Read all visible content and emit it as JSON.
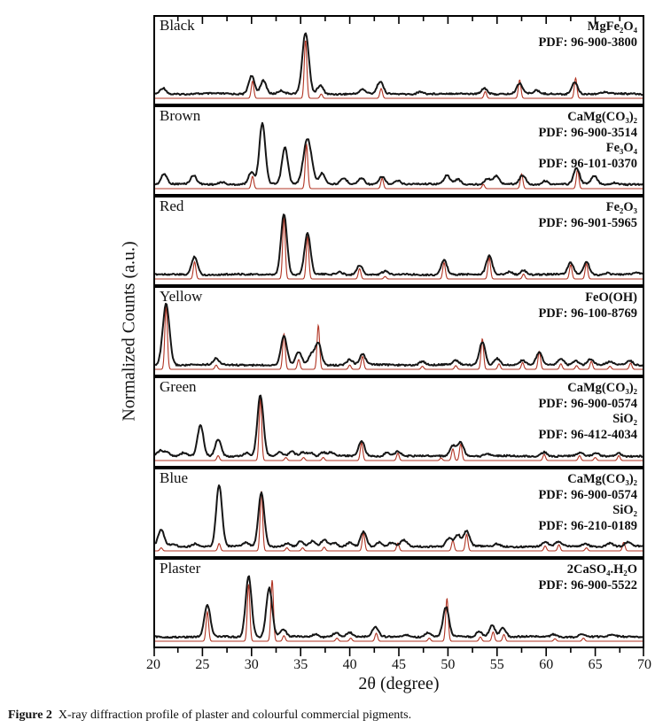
{
  "figure": {
    "caption_label": "Figure 2",
    "caption_text": "X-ray diffraction profile of plaster and colourful commercial pigments."
  },
  "chart_data": {
    "type": "line",
    "title": "X-ray diffraction profiles of plaster and colourful commercial pigments",
    "xlabel": "2θ (degree)",
    "ylabel": "Normalized Counts (a.u.)",
    "xlim": [
      20,
      70
    ],
    "x_major_ticks": [
      20,
      25,
      30,
      35,
      40,
      45,
      50,
      55,
      60,
      65,
      70
    ],
    "x_minor_step": 2.5,
    "grid": false,
    "colors": {
      "sample": "#161616",
      "reference": "#b13524",
      "border": "#000000"
    },
    "series_meaning": {
      "black_curve": "measured pattern",
      "red_curve": "reference PDF pattern"
    },
    "panels": [
      {
        "label": "Black",
        "phases": [
          {
            "formula": "MgFe₂O₄",
            "pdf": "PDF: 96-900-3800"
          }
        ],
        "sample_peaks": [
          [
            21.0,
            0.1
          ],
          [
            30.0,
            0.3
          ],
          [
            31.2,
            0.22
          ],
          [
            33.0,
            0.05
          ],
          [
            35.5,
            1.0,
            0.33
          ],
          [
            37.0,
            0.14
          ],
          [
            41.3,
            0.07
          ],
          [
            43.1,
            0.2
          ],
          [
            47.2,
            0.04
          ],
          [
            53.7,
            0.1
          ],
          [
            57.3,
            0.17
          ],
          [
            59.0,
            0.05
          ],
          [
            62.9,
            0.2
          ],
          [
            66.0,
            0.03
          ]
        ],
        "reference_peaks": [
          [
            30.1,
            0.28
          ],
          [
            35.5,
            0.95
          ],
          [
            37.1,
            0.07
          ],
          [
            43.2,
            0.16
          ],
          [
            53.8,
            0.11
          ],
          [
            57.3,
            0.3
          ],
          [
            63.0,
            0.33
          ]
        ]
      },
      {
        "label": "Brown",
        "phases": [
          {
            "formula": "CaMg(CO₃)₂",
            "pdf": "PDF: 96-900-3514"
          },
          {
            "formula": "Fe₃O₄",
            "pdf": "PDF: 96-101-0370"
          }
        ],
        "sample_peaks": [
          [
            21.1,
            0.17
          ],
          [
            24.1,
            0.14
          ],
          [
            27.0,
            0.04
          ],
          [
            30.0,
            0.2
          ],
          [
            31.1,
            1.0
          ],
          [
            33.4,
            0.6
          ],
          [
            35.7,
            0.75,
            0.42
          ],
          [
            37.2,
            0.18
          ],
          [
            39.4,
            0.09
          ],
          [
            41.2,
            0.1
          ],
          [
            43.3,
            0.13
          ],
          [
            44.9,
            0.06
          ],
          [
            49.9,
            0.15
          ],
          [
            51.0,
            0.09
          ],
          [
            54.0,
            0.09
          ],
          [
            54.9,
            0.13
          ],
          [
            57.6,
            0.15
          ],
          [
            59.9,
            0.06
          ],
          [
            63.1,
            0.26
          ],
          [
            64.9,
            0.13
          ],
          [
            67.0,
            0.03
          ]
        ],
        "reference_peaks": [
          [
            30.1,
            0.2
          ],
          [
            35.6,
            0.72
          ],
          [
            43.3,
            0.17
          ],
          [
            53.6,
            0.07
          ],
          [
            57.5,
            0.24
          ],
          [
            63.2,
            0.31
          ]
        ]
      },
      {
        "label": "Red",
        "phases": [
          {
            "formula": "Fe₂O₃",
            "pdf": "PDF: 96-901-5965"
          }
        ],
        "sample_peaks": [
          [
            24.2,
            0.3
          ],
          [
            33.3,
            1.0
          ],
          [
            35.7,
            0.68
          ],
          [
            39.0,
            0.04
          ],
          [
            41.0,
            0.16
          ],
          [
            43.6,
            0.05
          ],
          [
            49.6,
            0.24
          ],
          [
            54.2,
            0.3
          ],
          [
            56.3,
            0.05
          ],
          [
            57.7,
            0.07
          ],
          [
            62.5,
            0.19
          ],
          [
            64.1,
            0.21
          ],
          [
            66.2,
            0.03
          ],
          [
            69.2,
            0.03
          ]
        ],
        "reference_peaks": [
          [
            24.2,
            0.28
          ],
          [
            33.3,
            1.02
          ],
          [
            35.7,
            0.7
          ],
          [
            41.0,
            0.17
          ],
          [
            43.6,
            0.04
          ],
          [
            49.6,
            0.27
          ],
          [
            54.2,
            0.35
          ],
          [
            57.7,
            0.08
          ],
          [
            62.5,
            0.23
          ],
          [
            64.1,
            0.25
          ]
        ]
      },
      {
        "label": "Yellow",
        "phases": [
          {
            "formula": "FeO(OH)",
            "pdf": "PDF: 96-100-8769"
          }
        ],
        "sample_peaks": [
          [
            21.3,
            1.0,
            0.34
          ],
          [
            26.4,
            0.1
          ],
          [
            33.3,
            0.48
          ],
          [
            34.8,
            0.21
          ],
          [
            36.1,
            0.17
          ],
          [
            36.8,
            0.36
          ],
          [
            40.0,
            0.09
          ],
          [
            41.3,
            0.17
          ],
          [
            47.4,
            0.06
          ],
          [
            50.8,
            0.07
          ],
          [
            53.5,
            0.38
          ],
          [
            55.0,
            0.11
          ],
          [
            57.6,
            0.07
          ],
          [
            59.3,
            0.2
          ],
          [
            61.5,
            0.11
          ],
          [
            63.0,
            0.07
          ],
          [
            64.5,
            0.09
          ],
          [
            66.5,
            0.05
          ],
          [
            68.5,
            0.07
          ]
        ],
        "reference_peaks": [
          [
            21.3,
            1.04
          ],
          [
            26.4,
            0.07
          ],
          [
            33.3,
            0.58
          ],
          [
            34.8,
            0.16
          ],
          [
            36.8,
            0.72
          ],
          [
            40.0,
            0.07
          ],
          [
            41.3,
            0.21
          ],
          [
            47.4,
            0.05
          ],
          [
            50.8,
            0.06
          ],
          [
            53.5,
            0.5
          ],
          [
            55.2,
            0.09
          ],
          [
            57.6,
            0.11
          ],
          [
            59.3,
            0.29
          ],
          [
            61.5,
            0.09
          ],
          [
            63.1,
            0.06
          ],
          [
            64.6,
            0.13
          ],
          [
            66.5,
            0.05
          ],
          [
            68.6,
            0.1
          ]
        ]
      },
      {
        "label": "Green",
        "phases": [
          {
            "formula": "CaMg(CO₃)₂",
            "pdf": "PDF: 96-900-0574"
          },
          {
            "formula": "SiO₂",
            "pdf": "PDF: 96-412-4034"
          }
        ],
        "sample_peaks": [
          [
            20.7,
            0.09
          ],
          [
            21.4,
            0.06
          ],
          [
            23.1,
            0.05
          ],
          [
            24.8,
            0.5
          ],
          [
            26.6,
            0.28
          ],
          [
            29.5,
            0.05
          ],
          [
            30.9,
            1.0
          ],
          [
            32.9,
            0.06
          ],
          [
            34.1,
            0.08
          ],
          [
            35.2,
            0.07
          ],
          [
            36.0,
            0.06
          ],
          [
            37.3,
            0.06
          ],
          [
            38.1,
            0.06
          ],
          [
            41.2,
            0.25
          ],
          [
            43.8,
            0.06
          ],
          [
            44.9,
            0.08
          ],
          [
            50.5,
            0.17
          ],
          [
            51.3,
            0.23
          ],
          [
            54.0,
            0.04
          ],
          [
            59.8,
            0.07
          ],
          [
            63.4,
            0.05
          ],
          [
            65.1,
            0.04
          ],
          [
            67.4,
            0.05
          ]
        ],
        "reference_peaks": [
          [
            26.6,
            0.08
          ],
          [
            30.9,
            1.02
          ],
          [
            33.5,
            0.05
          ],
          [
            35.3,
            0.05
          ],
          [
            37.3,
            0.05
          ],
          [
            41.2,
            0.29
          ],
          [
            44.9,
            0.12
          ],
          [
            49.3,
            0.04
          ],
          [
            50.5,
            0.19
          ],
          [
            51.3,
            0.27
          ],
          [
            59.8,
            0.1
          ],
          [
            63.4,
            0.08
          ],
          [
            65.0,
            0.05
          ],
          [
            67.4,
            0.08
          ]
        ]
      },
      {
        "label": "Blue",
        "phases": [
          {
            "formula": "CaMg(CO₃)₂",
            "pdf": "PDF: 96-900-0574"
          },
          {
            "formula": "SiO₂",
            "pdf": "PDF: 96-210-0189"
          }
        ],
        "sample_peaks": [
          [
            20.8,
            0.28
          ],
          [
            22.0,
            0.04
          ],
          [
            24.3,
            0.05
          ],
          [
            26.7,
            1.0
          ],
          [
            29.4,
            0.06
          ],
          [
            31.0,
            0.88
          ],
          [
            33.6,
            0.06
          ],
          [
            35.0,
            0.08
          ],
          [
            36.2,
            0.08
          ],
          [
            37.4,
            0.1
          ],
          [
            38.4,
            0.06
          ],
          [
            40.0,
            0.07
          ],
          [
            41.4,
            0.25
          ],
          [
            43.0,
            0.07
          ],
          [
            44.3,
            0.06
          ],
          [
            45.5,
            0.1
          ],
          [
            50.1,
            0.14
          ],
          [
            51.0,
            0.19
          ],
          [
            51.9,
            0.25
          ],
          [
            55.0,
            0.04
          ],
          [
            59.9,
            0.07
          ],
          [
            61.3,
            0.08
          ],
          [
            64.0,
            0.05
          ],
          [
            66.5,
            0.06
          ],
          [
            68.3,
            0.07
          ]
        ],
        "reference_peaks": [
          [
            20.8,
            0.05
          ],
          [
            26.7,
            0.12
          ],
          [
            31.0,
            0.98
          ],
          [
            33.6,
            0.05
          ],
          [
            35.2,
            0.05
          ],
          [
            37.4,
            0.06
          ],
          [
            41.4,
            0.29
          ],
          [
            44.9,
            0.13
          ],
          [
            50.5,
            0.17
          ],
          [
            51.9,
            0.27
          ],
          [
            59.9,
            0.08
          ],
          [
            61.3,
            0.1
          ],
          [
            64.1,
            0.05
          ],
          [
            67.9,
            0.14
          ]
        ]
      },
      {
        "label": "Plaster",
        "phases": [
          {
            "formula": "2CaSO₄.H₂O",
            "pdf": "PDF: 96-900-5522"
          }
        ],
        "sample_peaks": [
          [
            25.5,
            0.52
          ],
          [
            29.7,
            1.0
          ],
          [
            31.8,
            0.8
          ],
          [
            33.2,
            0.12
          ],
          [
            36.5,
            0.04
          ],
          [
            38.6,
            0.07
          ],
          [
            40.0,
            0.07
          ],
          [
            42.6,
            0.16
          ],
          [
            45.7,
            0.04
          ],
          [
            48.0,
            0.07
          ],
          [
            49.8,
            0.48
          ],
          [
            53.2,
            0.09
          ],
          [
            54.5,
            0.19
          ],
          [
            55.6,
            0.15
          ],
          [
            60.8,
            0.04
          ],
          [
            63.7,
            0.05
          ],
          [
            66.7,
            0.03
          ]
        ],
        "reference_peaks": [
          [
            25.5,
            0.48
          ],
          [
            29.7,
            0.93
          ],
          [
            32.1,
            1.0
          ],
          [
            33.3,
            0.09
          ],
          [
            38.7,
            0.05
          ],
          [
            40.1,
            0.05
          ],
          [
            42.7,
            0.13
          ],
          [
            48.1,
            0.05
          ],
          [
            49.9,
            0.7
          ],
          [
            53.3,
            0.07
          ],
          [
            54.6,
            0.15
          ],
          [
            55.7,
            0.11
          ],
          [
            60.9,
            0.04
          ],
          [
            63.8,
            0.05
          ]
        ]
      }
    ]
  }
}
